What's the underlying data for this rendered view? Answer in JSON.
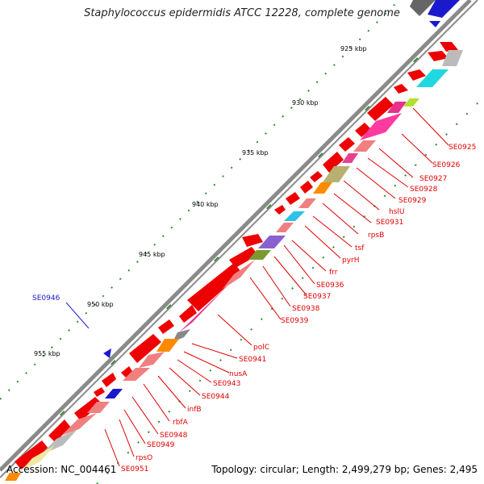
{
  "header": {
    "title": "Staphylococcus epidermidis ATCC 12228, complete genome"
  },
  "footer": {
    "accession": "Accession: NC_004461",
    "summary": "Topology: circular; Length: 2,499,279 bp; Genes: 2,495"
  },
  "scale": {
    "labels": [
      "925 kbp",
      "930 kbp",
      "935 kbp",
      "940 kbp",
      "945 kbp",
      "950 kbp",
      "955 kbp"
    ]
  },
  "gene_labels": [
    {
      "text": "SE0925"
    },
    {
      "text": "SE0926"
    },
    {
      "text": "SE0927"
    },
    {
      "text": "SE0928"
    },
    {
      "text": "SE0929"
    },
    {
      "text": "hslU"
    },
    {
      "text": "SE0931"
    },
    {
      "text": "rpsB"
    },
    {
      "text": "tsf"
    },
    {
      "text": "pyrH"
    },
    {
      "text": "frr"
    },
    {
      "text": "SE0936"
    },
    {
      "text": "SE0937"
    },
    {
      "text": "SE0938"
    },
    {
      "text": "SE0939"
    },
    {
      "text": "polC"
    },
    {
      "text": "SE0941"
    },
    {
      "text": "nusA"
    },
    {
      "text": "SE0943"
    },
    {
      "text": "SE0944"
    },
    {
      "text": "infB"
    },
    {
      "text": "rbfA"
    },
    {
      "text": "SE0948"
    },
    {
      "text": "SE0949"
    },
    {
      "text": "rpsO"
    },
    {
      "text": "SE0951"
    },
    {
      "text": "SE0946",
      "color": "blue"
    }
  ],
  "colors": {
    "cds": "#ee0000",
    "backbone": "#8a8a8a",
    "tick": "#2e8b2e",
    "label": "#e00000",
    "blue_feature": "#1a1acc"
  }
}
